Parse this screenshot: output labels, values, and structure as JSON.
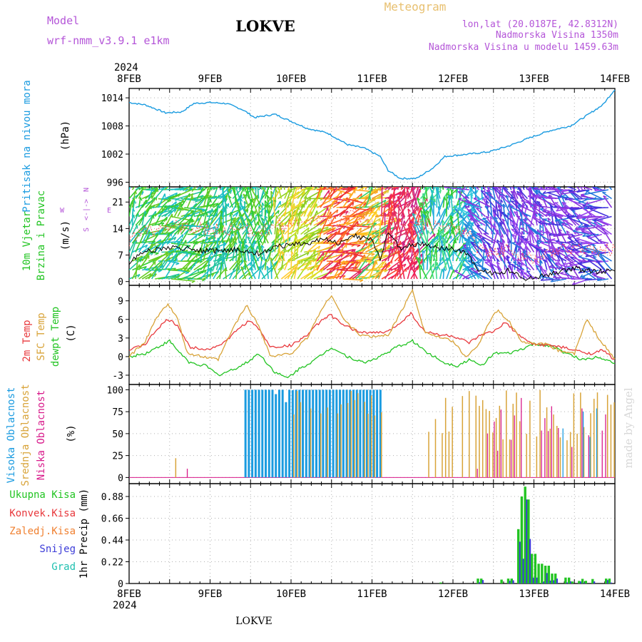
{
  "header": {
    "model_label": "Model",
    "model_name": "wrf-nmm_v3.9.1  e1km",
    "station": "LOKVE",
    "meteogram": "Meteogram",
    "lonlat": "lon,lat (20.0187E, 42.8312N)",
    "alt": "Nadmorska Visina 1350m",
    "alt_model": "Nadmorska Visina u modelu 1459.63m",
    "credit": "made by Angel",
    "footer_station": "LOKVE"
  },
  "time_axis": {
    "year": "2024",
    "labels": [
      "8FEB",
      "9FEB",
      "10FEB",
      "11FEB",
      "12FEB",
      "13FEB",
      "14FEB"
    ]
  },
  "colors": {
    "pressure": "#1a9be0",
    "temp2m": "#e8383c",
    "sfc": "#d8a338",
    "dew": "#22c422",
    "cloud_high": "#1a9be0",
    "cloud_mid": "#d8a338",
    "cloud_low": "#d81a8a",
    "precip_total": "#22c422",
    "precip_conv": "#e8383c",
    "precip_frz": "#f08030",
    "snow": "#3c3cd8",
    "hail": "#20c0b0",
    "compass": "#b455d8"
  },
  "panels": {
    "pressure": {
      "label": "Pritisak na nivou mora",
      "unit": "(hPa)",
      "ticks": [
        "1014",
        "1008",
        "1002",
        "996"
      ]
    },
    "wind": {
      "label1": "10m Vjetar",
      "label2": "Brzina i Pravac",
      "unit": "(m/s)",
      "ticks": [
        "21",
        "14",
        "7",
        "0"
      ],
      "compass": {
        "n": "N",
        "w": "W",
        "e": "E",
        "s": "S"
      }
    },
    "temp": {
      "label1": "2m Temp",
      "label2": "SFC Temp",
      "label3": "dewpt Temp",
      "unit": "(C)",
      "ticks": [
        "9",
        "6",
        "3",
        "0",
        "-3"
      ]
    },
    "cloud": {
      "label_high": "Visoka Oblacnost",
      "label_mid": "Srednja Oblacnost",
      "label_low": "Niska Oblacnost",
      "unit": "(%)",
      "ticks": [
        "100",
        "75",
        "50",
        "25",
        "0"
      ]
    },
    "precip": {
      "label": "1hr Precip (mm)",
      "ticks": [
        "0.88",
        "0.66",
        "0.44",
        "0.22",
        "0"
      ],
      "legend": [
        "Ukupna Kisa",
        "Konvek.Kisa",
        "Zaledj.Kisa",
        "Snijeg",
        "Grad"
      ]
    }
  },
  "chart_data": {
    "type": "line",
    "x": "days since 8FEB 00UTC",
    "pressure_hpa": [
      [
        0,
        1013
      ],
      [
        0.2,
        1012.5
      ],
      [
        0.45,
        1010.8
      ],
      [
        0.65,
        1011
      ],
      [
        0.8,
        1012.8
      ],
      [
        1.0,
        1013
      ],
      [
        1.2,
        1012.8
      ],
      [
        1.4,
        1011.5
      ],
      [
        1.55,
        1009.8
      ],
      [
        1.8,
        1010.5
      ],
      [
        2.0,
        1009
      ],
      [
        2.2,
        1007.5
      ],
      [
        2.45,
        1006.5
      ],
      [
        2.7,
        1004
      ],
      [
        2.9,
        1003.3
      ],
      [
        3.1,
        1001.5
      ],
      [
        3.2,
        998.5
      ],
      [
        3.35,
        996.8
      ],
      [
        3.55,
        996.8
      ],
      [
        3.75,
        999
      ],
      [
        3.9,
        1001.5
      ],
      [
        4.2,
        1002
      ],
      [
        4.45,
        1002.5
      ],
      [
        4.7,
        1003.8
      ],
      [
        4.95,
        1005.5
      ],
      [
        5.2,
        1007
      ],
      [
        5.45,
        1008
      ],
      [
        5.65,
        1010.2
      ],
      [
        5.85,
        1012.5
      ],
      [
        6.0,
        1015.8
      ]
    ],
    "wind_speed_ms": [
      [
        0,
        5
      ],
      [
        0.2,
        8
      ],
      [
        0.5,
        9
      ],
      [
        0.8,
        8.5
      ],
      [
        1.0,
        8
      ],
      [
        1.3,
        8.5
      ],
      [
        1.6,
        7.5
      ],
      [
        1.8,
        9
      ],
      [
        2.0,
        10
      ],
      [
        2.2,
        10
      ],
      [
        2.4,
        11.5
      ],
      [
        2.6,
        10
      ],
      [
        2.8,
        12
      ],
      [
        3.0,
        11
      ],
      [
        3.1,
        6
      ],
      [
        3.2,
        13
      ],
      [
        3.35,
        9
      ],
      [
        3.6,
        10
      ],
      [
        3.8,
        9
      ],
      [
        4.0,
        8.5
      ],
      [
        4.2,
        7
      ],
      [
        4.3,
        3
      ],
      [
        4.5,
        2
      ],
      [
        4.7,
        3
      ],
      [
        4.9,
        1
      ],
      [
        5.1,
        1.5
      ],
      [
        5.3,
        2.5
      ],
      [
        5.5,
        3.5
      ],
      [
        5.8,
        2.5
      ],
      [
        6.0,
        3
      ]
    ],
    "temp2m_c": [
      [
        0,
        1
      ],
      [
        0.2,
        2
      ],
      [
        0.35,
        4.5
      ],
      [
        0.48,
        6
      ],
      [
        0.6,
        5
      ],
      [
        0.75,
        1.5
      ],
      [
        1.0,
        1.2
      ],
      [
        1.2,
        2.5
      ],
      [
        1.35,
        4.5
      ],
      [
        1.48,
        5.8
      ],
      [
        1.6,
        4.5
      ],
      [
        1.75,
        1.5
      ],
      [
        2.0,
        1.8
      ],
      [
        2.2,
        3.5
      ],
      [
        2.35,
        5.5
      ],
      [
        2.48,
        6.8
      ],
      [
        2.65,
        5
      ],
      [
        2.85,
        4
      ],
      [
        3.0,
        3.8
      ],
      [
        3.2,
        4
      ],
      [
        3.35,
        5.5
      ],
      [
        3.48,
        7
      ],
      [
        3.65,
        4
      ],
      [
        3.85,
        3.5
      ],
      [
        4.0,
        3.3
      ],
      [
        4.2,
        2.2
      ],
      [
        4.35,
        3.5
      ],
      [
        4.5,
        4
      ],
      [
        4.65,
        5.5
      ],
      [
        4.85,
        3
      ],
      [
        5.0,
        2
      ],
      [
        5.2,
        1.8
      ],
      [
        5.35,
        1.5
      ],
      [
        5.5,
        1
      ],
      [
        5.7,
        0.5
      ],
      [
        5.85,
        1
      ],
      [
        6.0,
        -0.5
      ]
    ],
    "sfc_c": [
      [
        0,
        0
      ],
      [
        0.2,
        2.5
      ],
      [
        0.35,
        6.5
      ],
      [
        0.48,
        8.5
      ],
      [
        0.6,
        6
      ],
      [
        0.72,
        0.5
      ],
      [
        0.9,
        0
      ],
      [
        1.1,
        -0.5
      ],
      [
        1.3,
        5
      ],
      [
        1.45,
        8.3
      ],
      [
        1.6,
        5
      ],
      [
        1.75,
        0
      ],
      [
        2.0,
        0.5
      ],
      [
        2.2,
        3
      ],
      [
        2.35,
        7
      ],
      [
        2.5,
        10
      ],
      [
        2.65,
        6
      ],
      [
        2.85,
        3.5
      ],
      [
        3.0,
        3.2
      ],
      [
        3.2,
        3.5
      ],
      [
        3.35,
        7
      ],
      [
        3.5,
        10.8
      ],
      [
        3.65,
        4
      ],
      [
        3.85,
        3
      ],
      [
        4.0,
        2.5
      ],
      [
        4.15,
        0
      ],
      [
        4.3,
        1.5
      ],
      [
        4.42,
        5
      ],
      [
        4.55,
        7.5
      ],
      [
        4.7,
        5.5
      ],
      [
        4.85,
        2.5
      ],
      [
        5.0,
        2
      ],
      [
        5.15,
        2
      ],
      [
        5.3,
        1
      ],
      [
        5.5,
        0.5
      ],
      [
        5.65,
        6
      ],
      [
        5.8,
        3
      ],
      [
        6.0,
        -0.5
      ]
    ],
    "dewpt_c": [
      [
        0,
        0
      ],
      [
        0.2,
        0.5
      ],
      [
        0.35,
        1.5
      ],
      [
        0.5,
        2.5
      ],
      [
        0.6,
        1
      ],
      [
        0.75,
        -1
      ],
      [
        0.95,
        -1.5
      ],
      [
        1.1,
        -3
      ],
      [
        1.3,
        -2
      ],
      [
        1.45,
        -1
      ],
      [
        1.6,
        0.5
      ],
      [
        1.8,
        -2.5
      ],
      [
        1.95,
        -3.5
      ],
      [
        2.1,
        -2
      ],
      [
        2.3,
        -0.5
      ],
      [
        2.5,
        1.5
      ],
      [
        2.7,
        0
      ],
      [
        2.9,
        -1
      ],
      [
        3.1,
        0
      ],
      [
        3.3,
        1.5
      ],
      [
        3.5,
        2.5
      ],
      [
        3.7,
        0.5
      ],
      [
        3.9,
        -1
      ],
      [
        4.05,
        -1.5
      ],
      [
        4.2,
        -0.5
      ],
      [
        4.35,
        -1.5
      ],
      [
        4.5,
        0.5
      ],
      [
        4.7,
        0.5
      ],
      [
        4.85,
        1.2
      ],
      [
        5.0,
        2
      ],
      [
        5.2,
        1.8
      ],
      [
        5.4,
        0.5
      ],
      [
        5.6,
        -0.5
      ],
      [
        5.8,
        0
      ],
      [
        6.0,
        -1
      ]
    ],
    "cloud_high_pct": [
      [
        0,
        0
      ],
      [
        1.38,
        0
      ],
      [
        1.4,
        100
      ],
      [
        2.0,
        100
      ],
      [
        2.25,
        100
      ],
      [
        2.45,
        100
      ],
      [
        2.7,
        100
      ],
      [
        3.0,
        100
      ],
      [
        3.1,
        100
      ],
      [
        3.12,
        0
      ],
      [
        6.0,
        0
      ]
    ],
    "cloud_mid_pct": [
      [
        0,
        0
      ],
      [
        0.52,
        22
      ],
      [
        1.95,
        100
      ],
      [
        2.2,
        100
      ],
      [
        2.5,
        100
      ],
      [
        3.05,
        30
      ],
      [
        3.6,
        30
      ],
      [
        3.7,
        100
      ],
      [
        6.0,
        100
      ]
    ],
    "cloud_low_pct": [
      [
        0,
        0
      ],
      [
        0.55,
        10
      ],
      [
        1.2,
        10
      ],
      [
        2.55,
        10
      ],
      [
        3.5,
        10
      ],
      [
        4.5,
        100
      ],
      [
        6.0,
        100
      ]
    ],
    "precip_total_mm": [
      [
        4.35,
        0.05
      ],
      [
        4.7,
        0.05
      ],
      [
        4.82,
        0.55
      ],
      [
        4.86,
        0.88
      ],
      [
        4.89,
        0.98
      ],
      [
        4.93,
        0.85
      ],
      [
        5.0,
        0.3
      ],
      [
        5.08,
        0.2
      ],
      [
        5.15,
        0.18
      ],
      [
        5.25,
        0.1
      ],
      [
        5.4,
        0.06
      ],
      [
        5.9,
        0.05
      ]
    ],
    "snow_mm": [
      [
        4.86,
        0.25
      ],
      [
        4.89,
        0.85
      ],
      [
        4.93,
        0.45
      ],
      [
        5.0,
        0.06
      ],
      [
        5.3,
        0.05
      ],
      [
        5.85,
        0.03
      ]
    ],
    "ylim_pressure": [
      995,
      1016
    ],
    "ylim_wind": [
      -1,
      25
    ],
    "ylim_temp": [
      -4.5,
      11.5
    ],
    "ylim_cloud": [
      0,
      100
    ],
    "ylim_precip": [
      0,
      1.0
    ]
  }
}
